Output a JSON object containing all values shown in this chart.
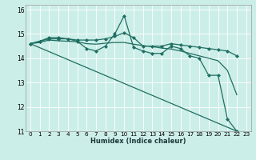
{
  "xlabel": "Humidex (Indice chaleur)",
  "bg_color": "#cceee8",
  "line_color": "#1e6e62",
  "grid_color": "#ffffff",
  "xlim": [
    -0.5,
    23.5
  ],
  "ylim": [
    11,
    16.2
  ],
  "xticks": [
    0,
    1,
    2,
    3,
    4,
    5,
    6,
    7,
    8,
    9,
    10,
    11,
    12,
    13,
    14,
    15,
    16,
    17,
    18,
    19,
    20,
    21,
    22,
    23
  ],
  "yticks": [
    11,
    12,
    13,
    14,
    15,
    16
  ],
  "series": [
    {
      "x": [
        0,
        1,
        2,
        3,
        4,
        5,
        6,
        7,
        8,
        9,
        10,
        11,
        12,
        13,
        14,
        15,
        16,
        17,
        18,
        19,
        20,
        21,
        22
      ],
      "y": [
        14.6,
        14.7,
        14.85,
        14.85,
        14.8,
        14.75,
        14.75,
        14.75,
        14.8,
        14.9,
        15.05,
        14.85,
        14.5,
        14.5,
        14.5,
        14.6,
        14.55,
        14.5,
        14.45,
        14.4,
        14.35,
        14.3,
        14.1
      ],
      "marker": "D",
      "markersize": 2.0,
      "linewidth": 0.9
    },
    {
      "x": [
        0,
        1,
        2,
        3,
        4,
        5,
        6,
        7,
        8,
        9,
        10,
        11,
        12,
        13,
        14,
        15,
        16,
        17,
        18,
        19,
        20,
        21,
        22
      ],
      "y": [
        14.6,
        14.7,
        14.8,
        14.8,
        14.8,
        14.7,
        14.4,
        14.3,
        14.5,
        15.0,
        15.75,
        14.45,
        14.3,
        14.2,
        14.2,
        14.5,
        14.4,
        14.1,
        14.0,
        13.3,
        13.3,
        11.5,
        11.0
      ],
      "marker": "D",
      "markersize": 2.0,
      "linewidth": 0.9
    },
    {
      "x": [
        0,
        22
      ],
      "y": [
        14.6,
        11.0
      ],
      "marker": null,
      "markersize": 0,
      "linewidth": 0.9
    },
    {
      "x": [
        0,
        1,
        2,
        3,
        4,
        5,
        6,
        7,
        8,
        9,
        10,
        11,
        12,
        13,
        14,
        15,
        16,
        17,
        18,
        19,
        20,
        21,
        22
      ],
      "y": [
        14.6,
        14.65,
        14.75,
        14.72,
        14.7,
        14.68,
        14.6,
        14.58,
        14.62,
        14.65,
        14.65,
        14.58,
        14.52,
        14.48,
        14.42,
        14.38,
        14.3,
        14.2,
        14.1,
        14.0,
        13.9,
        13.5,
        12.5
      ],
      "marker": null,
      "markersize": 0,
      "linewidth": 0.9
    }
  ]
}
